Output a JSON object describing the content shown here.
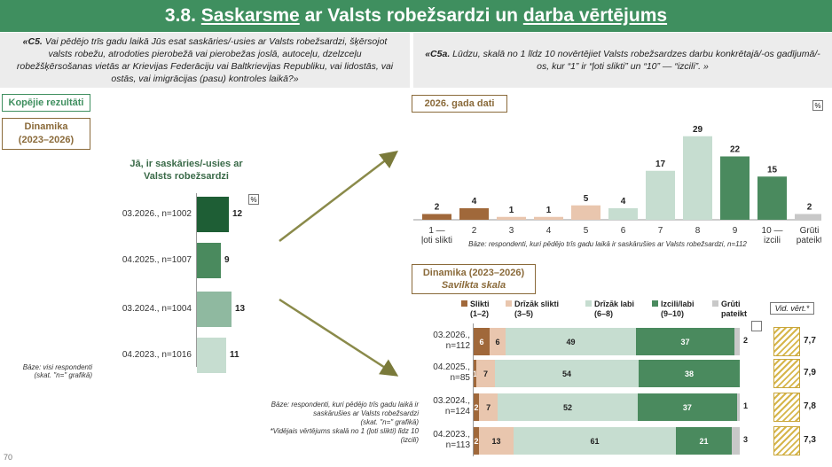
{
  "header": {
    "num": "3.8.",
    "w1": "Saskarsme",
    "mid": " ar Valsts robežsardzi un ",
    "w2": "darba vērtējums"
  },
  "q_left": {
    "code": "«C5.",
    "text": " Vai pēdējo trīs gadu laikā Jūs esat saskāries/-usies ar Valsts robežsardzi, šķērsojot valsts robežu, atrodoties pierobežā vai pierobežas joslā, autoceļu, dzelzceļu robežšķērsošanas vietās ar Krievijas Federāciju vai Baltkrievijas Republiku, vai lidostās, vai ostās, vai imigrācijas (pasu) kontroles laikā?»"
  },
  "q_right": {
    "code": "«C5a.",
    "text": " Lūdzu, skalā no 1 līdz 10 novērtējiet Valsts robežsardzes darbu konkrētajā/-os gadījumā/-os, kur “1” ir “ļoti slikti” un “10” — “izcili”. »"
  },
  "labels": {
    "kopejie": "Kopējie rezultāti",
    "dinamika": "Dinamika\n(2023–2026)",
    "year_data": "2026. gada dati",
    "dinamika2_title": "Dinamika (2023–2026)",
    "dinamika2_sub": "Savilkta skala",
    "pct": "%",
    "vid_vert": "Vid. vērt.*",
    "page_num": "70"
  },
  "colors": {
    "header": "#3f8f5f",
    "dark_green": "#1e5e35",
    "mid_green": "#4a8a5e",
    "light_green": "#8fb9a0",
    "pale_green": "#c6ddd0",
    "brown": "#a0683a",
    "peach": "#e9c6ae",
    "grey": "#c8c8c8",
    "hatch": "#d6b54a"
  },
  "chart_data": [
    {
      "type": "bar",
      "orientation": "horizontal",
      "title": "Jā, ir saskāries/-usies ar Valsts robežsardzi",
      "categories": [
        "03.2026., n=1002",
        "04.2025., n=1007",
        "03.2024., n=1004",
        "04.2023., n=1016"
      ],
      "values": [
        12,
        9,
        13,
        11
      ],
      "unit": "%",
      "base_note": "Bāze: visi respondenti\n(skat. \"n=\" grafikā)"
    },
    {
      "type": "bar",
      "title": "2026. gada dati",
      "categories": [
        "1 — ļoti slikti",
        "2",
        "3",
        "4",
        "5",
        "6",
        "7",
        "8",
        "9",
        "10 — izcili",
        "Grūti pateikt"
      ],
      "values": [
        2,
        4,
        1,
        1,
        5,
        4,
        17,
        29,
        22,
        15,
        2
      ],
      "unit": "%",
      "base_note": "Bāze: respondenti, kuri pēdējo trīs gadu laikā ir saskārušies ar Valsts robežsardzi, n=112"
    },
    {
      "type": "bar",
      "stacked": true,
      "orientation": "horizontal",
      "title": "Dinamika (2023–2026) Savilkta skala",
      "categories": [
        "03.2026., n=112",
        "04.2025., n=85",
        "03.2024., n=124",
        "04.2023., n=113"
      ],
      "series": [
        {
          "name": "Slikti (1–2)",
          "values": [
            6,
            1,
            2,
            2
          ]
        },
        {
          "name": "Drīzāk slikti (3–5)",
          "values": [
            6,
            7,
            7,
            13
          ]
        },
        {
          "name": "Drīzāk labi (6–8)",
          "values": [
            49,
            54,
            52,
            61
          ]
        },
        {
          "name": "Izcili/labi (9–10)",
          "values": [
            37,
            38,
            37,
            21
          ]
        },
        {
          "name": "Grūti pateikt",
          "values": [
            2,
            0,
            1,
            3
          ]
        }
      ],
      "averages_label": "Vid. vērt.*",
      "averages": [
        "7,7",
        "7,9",
        "7,8",
        "7,3"
      ],
      "base_note": "Bāze: respondenti, kuri pēdējo trīs gadu laikā ir saskārušies ar Valsts robežsardzi\n(skat. \"n=\" grafikā)\n*Vidējais vērtējums skalā no 1 (ļoti slikti) līdz 10 (izcili)"
    }
  ]
}
